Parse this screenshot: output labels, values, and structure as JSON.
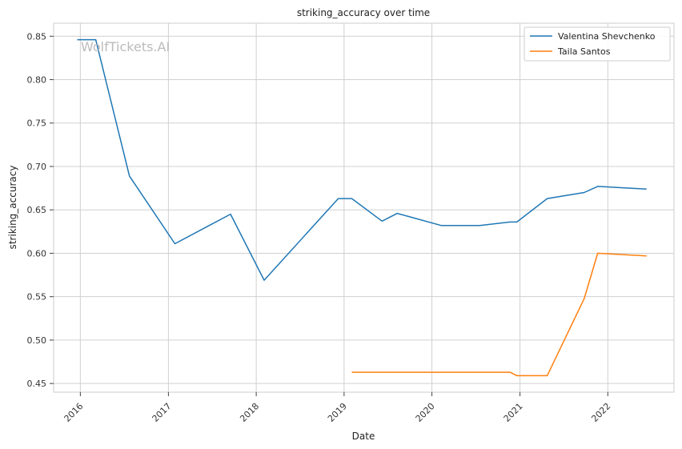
{
  "chart_data": {
    "type": "line",
    "title": "striking_accuracy over time",
    "xlabel": "Date",
    "ylabel": "striking_accuracy",
    "watermark": "WolfTickets.AI",
    "x_ticks": [
      "2016",
      "2017",
      "2018",
      "2019",
      "2020",
      "2021",
      "2022"
    ],
    "y_ticks": [
      "0.45",
      "0.50",
      "0.55",
      "0.60",
      "0.65",
      "0.70",
      "0.75",
      "0.80",
      "0.85"
    ],
    "xlim": [
      "2015-09-12",
      "2022-10-03"
    ],
    "ylim": [
      0.44,
      0.865
    ],
    "grid": true,
    "legend_position": "top-right",
    "series": [
      {
        "name": "Valentina Shevchenko",
        "color": "#1f77b4",
        "points": [
          [
            "2015-12-19",
            0.846
          ],
          [
            "2016-03-05",
            0.846
          ],
          [
            "2016-07-23",
            0.689
          ],
          [
            "2017-01-28",
            0.611
          ],
          [
            "2017-09-16",
            0.645
          ],
          [
            "2018-02-03",
            0.569
          ],
          [
            "2018-12-08",
            0.663
          ],
          [
            "2019-02-02",
            0.663
          ],
          [
            "2019-06-08",
            0.637
          ],
          [
            "2019-08-10",
            0.646
          ],
          [
            "2020-02-08",
            0.632
          ],
          [
            "2020-07-18",
            0.632
          ],
          [
            "2020-11-21",
            0.636
          ],
          [
            "2020-12-19",
            0.636
          ],
          [
            "2021-04-24",
            0.663
          ],
          [
            "2021-09-25",
            0.67
          ],
          [
            "2021-11-20",
            0.677
          ],
          [
            "2022-06-11",
            0.674
          ]
        ]
      },
      {
        "name": "Taila Santos",
        "color": "#ff7f0e",
        "points": [
          [
            "2019-02-02",
            0.463
          ],
          [
            "2020-11-21",
            0.463
          ],
          [
            "2020-12-19",
            0.459
          ],
          [
            "2021-04-24",
            0.459
          ],
          [
            "2021-09-25",
            0.548
          ],
          [
            "2021-11-20",
            0.6
          ],
          [
            "2022-06-11",
            0.597
          ]
        ]
      }
    ]
  }
}
